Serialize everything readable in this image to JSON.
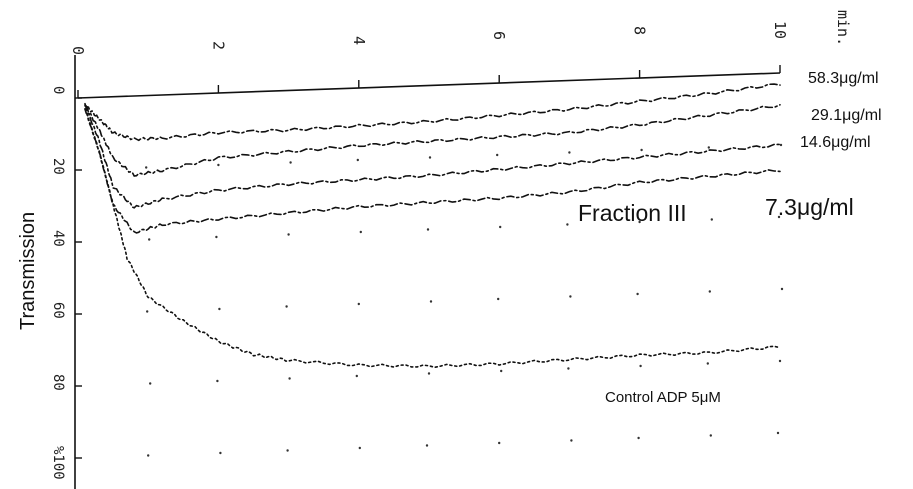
{
  "chart_data": {
    "type": "line",
    "title": "",
    "xlabel": "min.",
    "ylabel": "Transmission",
    "x_ticks": [
      "0",
      "2",
      "4",
      "6",
      "8",
      "10"
    ],
    "y_ticks": [
      "0",
      "20",
      "40",
      "60",
      "80",
      "%100"
    ],
    "xlim": [
      0,
      10
    ],
    "ylim": [
      0,
      100
    ],
    "y_inverted": true,
    "grid": "dotted",
    "annotations": [
      "Fraction III",
      "Control ADP 5μM"
    ],
    "series": [
      {
        "name": "58.3μg/ml",
        "x": [
          0.1,
          0.3,
          0.5,
          0.8,
          1.2,
          2,
          3,
          4,
          5,
          6,
          7,
          8,
          9,
          10
        ],
        "y": [
          2,
          6,
          10,
          12,
          12,
          11,
          11,
          10.5,
          10,
          9,
          8,
          6.5,
          5,
          3
        ]
      },
      {
        "name": "29.1μg/ml",
        "x": [
          0.1,
          0.3,
          0.5,
          0.8,
          1.2,
          2,
          3,
          4,
          5,
          6,
          7,
          8,
          9,
          10
        ],
        "y": [
          2,
          9,
          17,
          22,
          21,
          18,
          17,
          16,
          15.5,
          15,
          14.5,
          13,
          11,
          9
        ]
      },
      {
        "name": "14.6μg/ml",
        "x": [
          0.1,
          0.3,
          0.5,
          0.8,
          1.2,
          2,
          3,
          4,
          5,
          6,
          7,
          8,
          9,
          10
        ],
        "y": [
          2,
          12,
          25,
          31,
          29,
          27,
          26,
          25.5,
          25,
          24,
          23,
          22,
          21,
          20
        ]
      },
      {
        "name": "7.3μg/ml",
        "x": [
          0.1,
          0.3,
          0.5,
          0.8,
          1.2,
          2,
          3,
          4,
          5,
          6,
          7,
          8,
          9,
          10
        ],
        "y": [
          3,
          15,
          30,
          38,
          36,
          35,
          34,
          33,
          32.5,
          32,
          31,
          29,
          28,
          27
        ]
      },
      {
        "name": "Control ADP 5μM",
        "x": [
          0.1,
          0.3,
          0.5,
          0.7,
          1,
          1.5,
          2,
          2.5,
          3,
          4,
          5,
          6,
          7,
          8,
          9,
          10
        ],
        "y": [
          3,
          15,
          30,
          45,
          56,
          63,
          69,
          73,
          75,
          77,
          78,
          78,
          77.5,
          77,
          77,
          76
        ]
      }
    ]
  }
}
